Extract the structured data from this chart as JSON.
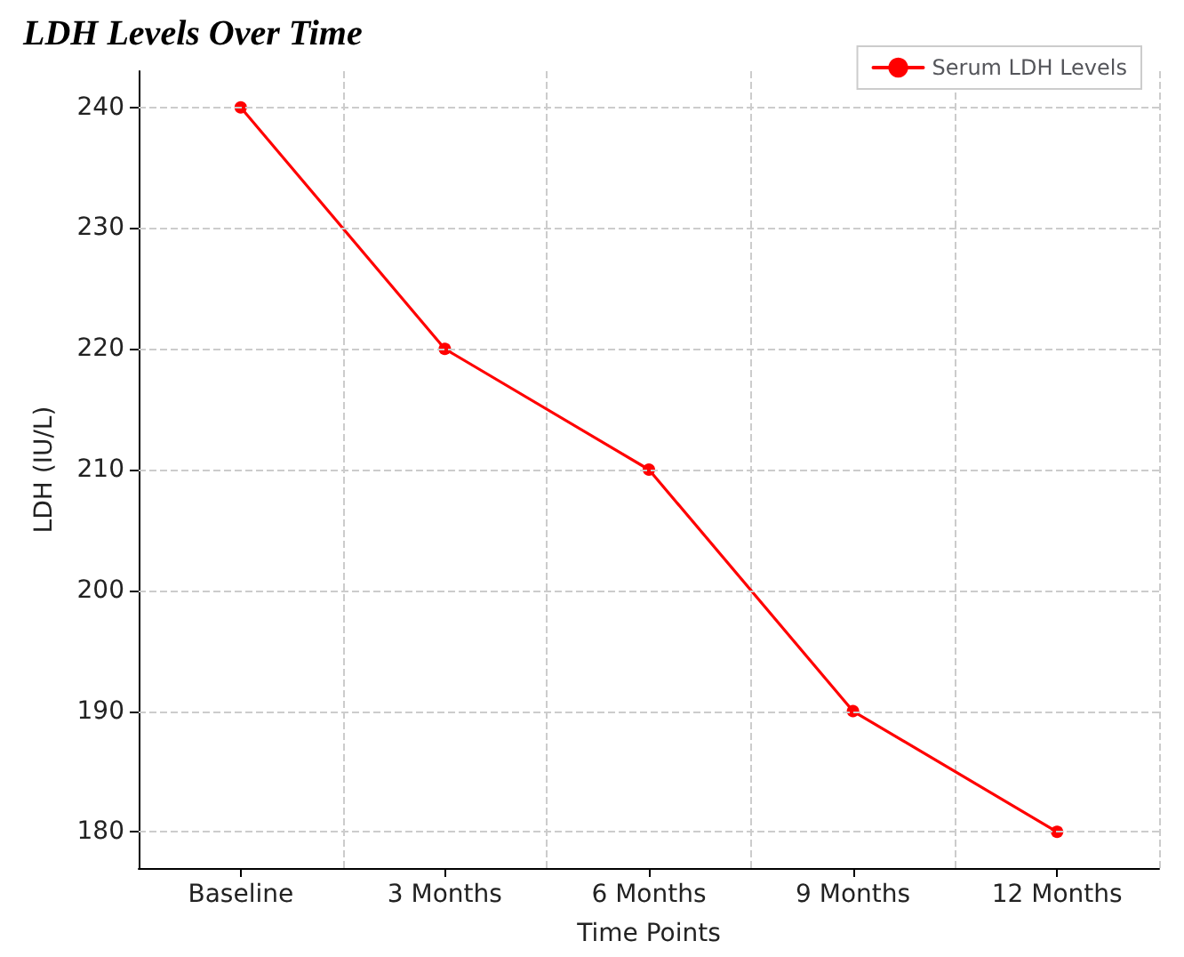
{
  "chart_data": {
    "type": "line",
    "title": "LDH Levels Over Time",
    "xlabel": "Time Points",
    "ylabel": "LDH (IU/L)",
    "categories": [
      "Baseline",
      "3 Months",
      "6 Months",
      "9 Months",
      "12 Months"
    ],
    "series": [
      {
        "name": "Serum LDH Levels",
        "color": "#ff0000",
        "values": [
          240,
          220,
          210,
          190,
          180
        ]
      }
    ],
    "ylim": [
      177,
      243
    ],
    "yticks": [
      180,
      190,
      200,
      210,
      220,
      230,
      240
    ],
    "grid": true,
    "legend": "top right",
    "marker": "circle",
    "line_style": "solid"
  }
}
